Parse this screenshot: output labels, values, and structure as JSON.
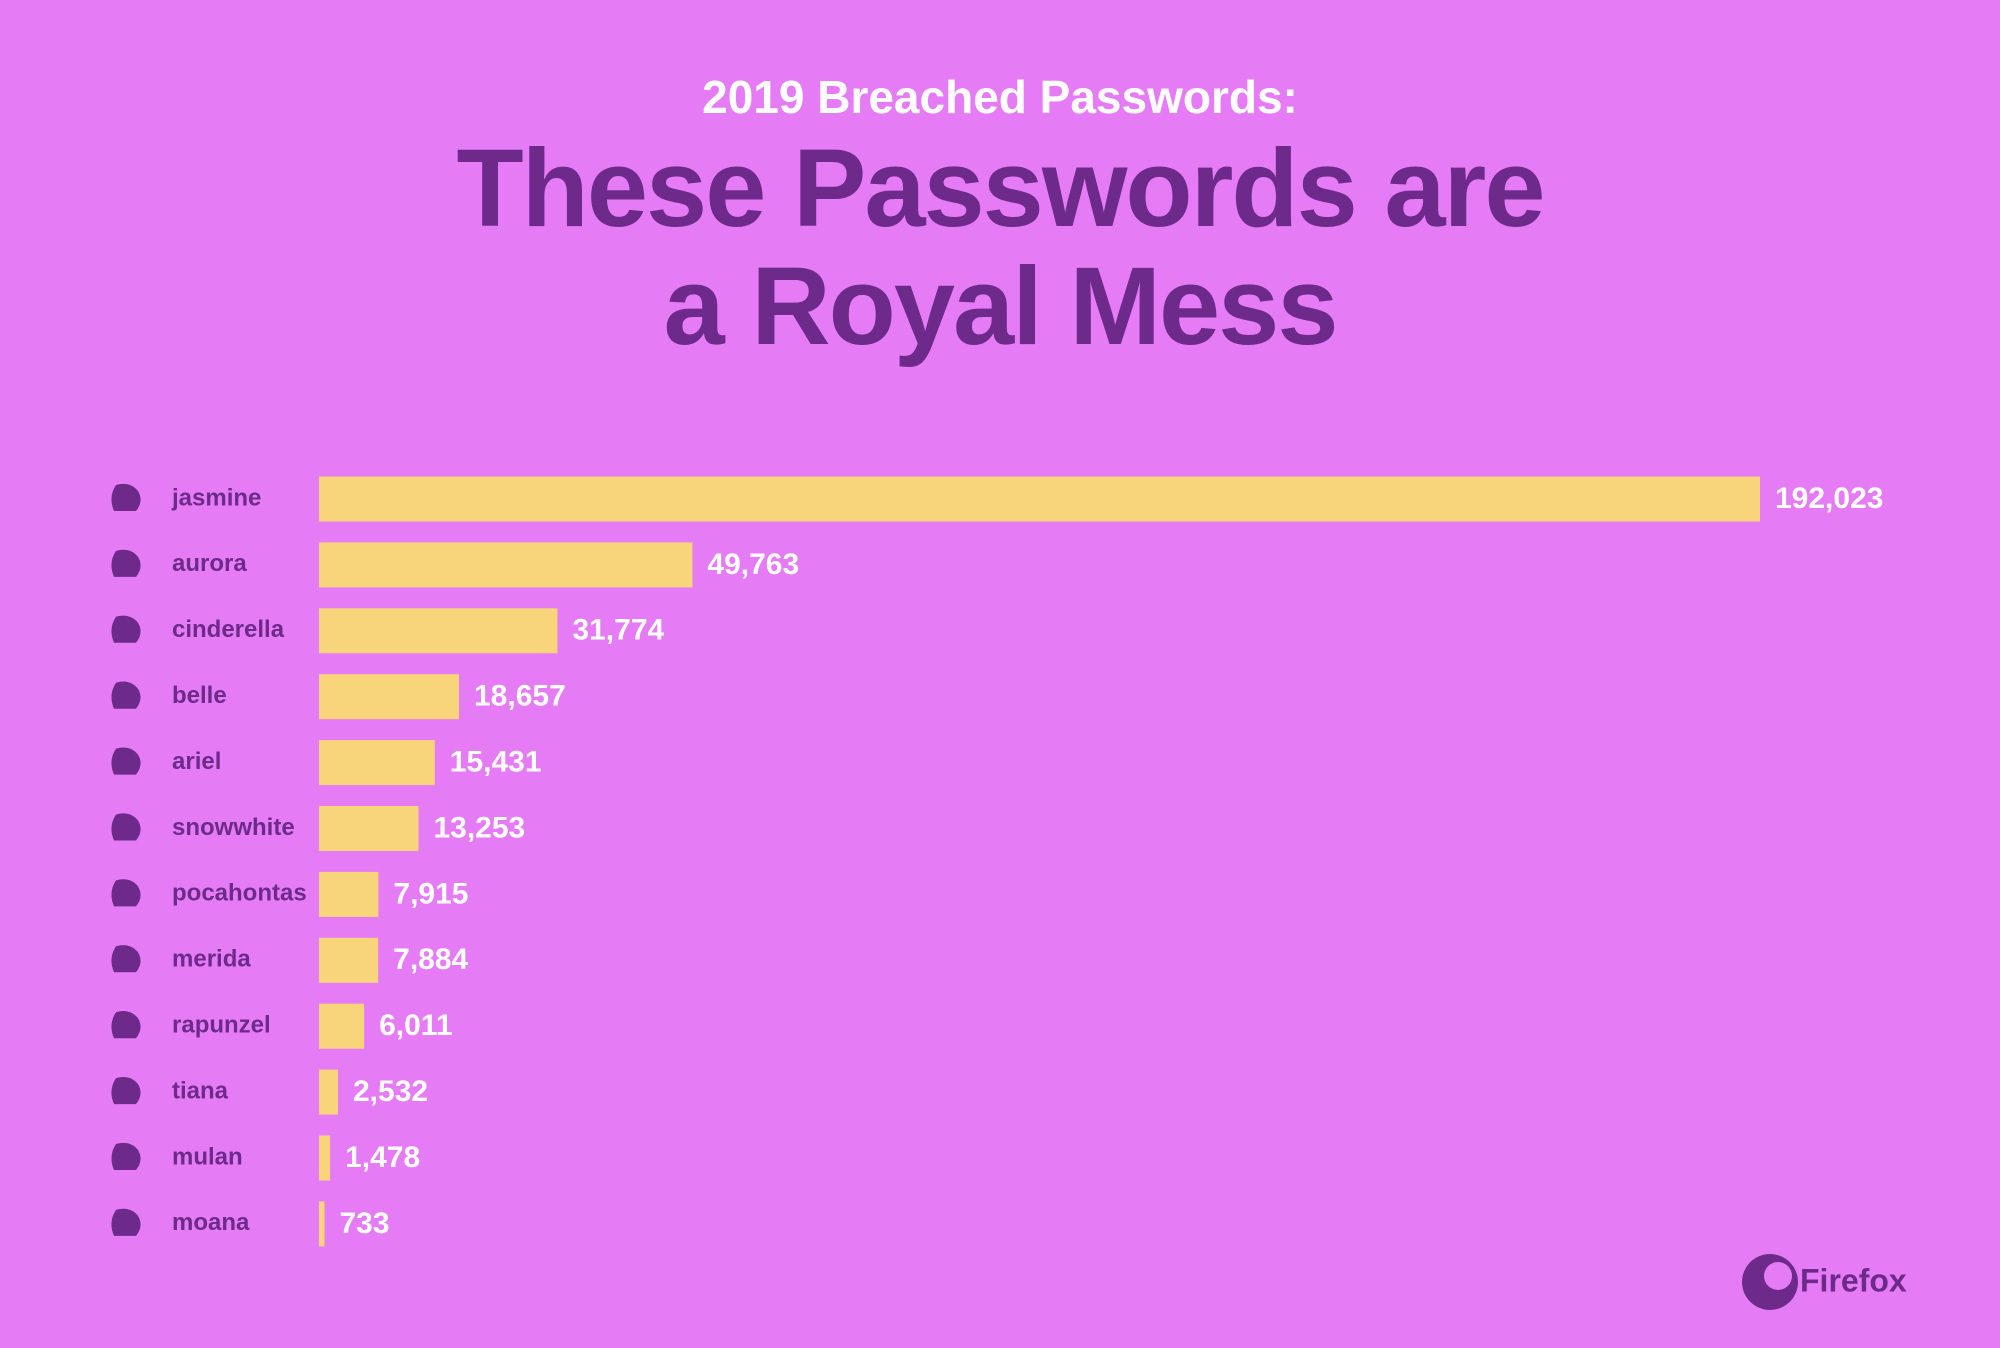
{
  "chart_data": {
    "type": "bar",
    "orientation": "horizontal",
    "subtitle": "2019 Breached Passwords:",
    "title": "These Passwords are a Royal Mess",
    "categories": [
      "jasmine",
      "aurora",
      "cinderella",
      "belle",
      "ariel",
      "snowwhite",
      "pocahontas",
      "merida",
      "rapunzel",
      "tiana",
      "mulan",
      "moana"
    ],
    "values": [
      192023,
      49763,
      31774,
      18657,
      15431,
      13253,
      7915,
      7884,
      6011,
      2532,
      1478,
      733
    ],
    "value_labels": [
      "192,023",
      "49,763",
      "31,774",
      "18,657",
      "15,431",
      "13,253",
      "7,915",
      "7,884",
      "6,011",
      "2,532",
      "1,478",
      "733"
    ],
    "color": "#f8d57a",
    "brand": "Firefox"
  }
}
